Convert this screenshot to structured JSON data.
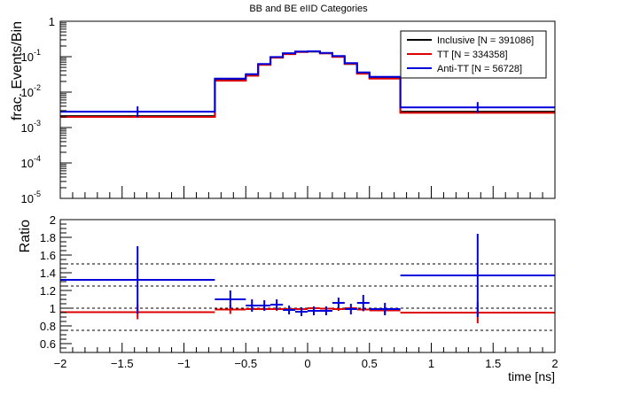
{
  "title": "BB and BE eIID Categories",
  "chart_data": [
    {
      "type": "line",
      "panel": "top",
      "ylabel": "frac. Events/Bin",
      "yscale": "log",
      "ylim": [
        1e-05,
        1
      ],
      "xlim": [
        -2,
        2
      ],
      "y_tick_labels": [
        "10",
        "10",
        "10",
        "10",
        "10",
        "1"
      ],
      "y_tick_exps": [
        "-5",
        "-4",
        "-3",
        "-2",
        "-1",
        ""
      ],
      "edges": [
        -2,
        -0.75,
        -0.5,
        -0.4,
        -0.3,
        -0.2,
        -0.1,
        0,
        0.1,
        0.2,
        0.3,
        0.4,
        0.5,
        0.75,
        2
      ],
      "series": [
        {
          "name": "Inclusive [N = 391086]",
          "color": "#000000",
          "values": [
            0.0021,
            0.022,
            0.03,
            0.06,
            0.095,
            0.12,
            0.138,
            0.14,
            0.125,
            0.1,
            0.062,
            0.034,
            0.025,
            0.0028
          ]
        },
        {
          "name": "TT [N = 334358]",
          "color": "#dd0000",
          "values": [
            0.002,
            0.021,
            0.029,
            0.059,
            0.094,
            0.118,
            0.136,
            0.141,
            0.124,
            0.099,
            0.063,
            0.033,
            0.024,
            0.0026
          ]
        },
        {
          "name": "Anti-TT [N = 56728]",
          "color": "#0000dd",
          "values": [
            0.0028,
            0.024,
            0.032,
            0.062,
            0.098,
            0.125,
            0.14,
            0.142,
            0.128,
            0.105,
            0.066,
            0.036,
            0.027,
            0.0037
          ]
        }
      ],
      "legend": "top-right"
    },
    {
      "type": "line",
      "panel": "bottom",
      "xlabel": "time [ns]",
      "ylabel": "Ratio",
      "xlim": [
        -2,
        2
      ],
      "ylim": [
        0.5,
        2
      ],
      "x_ticks": [
        -2,
        -1.5,
        -1,
        -0.5,
        0,
        0.5,
        1,
        1.5,
        2
      ],
      "x_tick_labels": [
        "−2",
        "−1.5",
        "−1",
        "−0.5",
        "0",
        "0.5",
        "1",
        "1.5",
        "2"
      ],
      "y_ticks": [
        0.6,
        0.8,
        1,
        1.2,
        1.4,
        1.6,
        1.8,
        2
      ],
      "y_tick_labels": [
        "0.6",
        "0.8",
        "1",
        "1.2",
        "1.4",
        "1.6",
        "1.8",
        "2"
      ],
      "ref_lines": [
        0.75,
        1.0,
        1.25,
        1.5
      ],
      "edges": [
        -2,
        -0.75,
        -0.5,
        -0.4,
        -0.3,
        -0.2,
        -0.1,
        0,
        0.1,
        0.2,
        0.3,
        0.4,
        0.5,
        0.75,
        2
      ],
      "centers": [
        -1.375,
        -0.625,
        -0.45,
        -0.35,
        -0.25,
        -0.15,
        -0.05,
        0.05,
        0.15,
        0.25,
        0.35,
        0.45,
        0.625,
        1.375
      ],
      "series": [
        {
          "name": "TT [N = 334358]",
          "color": "#dd0000",
          "values": [
            0.955,
            0.985,
            0.99,
            0.99,
            0.99,
            0.99,
            0.99,
            1.0,
            0.995,
            0.99,
            1.0,
            0.985,
            0.975,
            0.95
          ],
          "errors": [
            0.08,
            0.05,
            0.02,
            0.02,
            0.02,
            0.02,
            0.02,
            0.02,
            0.02,
            0.02,
            0.02,
            0.02,
            0.04,
            0.12
          ]
        },
        {
          "name": "Anti-TT [N = 56728]",
          "color": "#0000dd",
          "values": [
            1.32,
            1.1,
            1.03,
            1.03,
            1.04,
            0.98,
            0.96,
            0.97,
            0.97,
            1.06,
            0.99,
            1.06,
            0.99,
            1.37
          ],
          "errors": [
            0.38,
            0.1,
            0.07,
            0.06,
            0.06,
            0.05,
            0.05,
            0.05,
            0.05,
            0.06,
            0.06,
            0.09,
            0.07,
            0.47
          ]
        }
      ]
    }
  ]
}
